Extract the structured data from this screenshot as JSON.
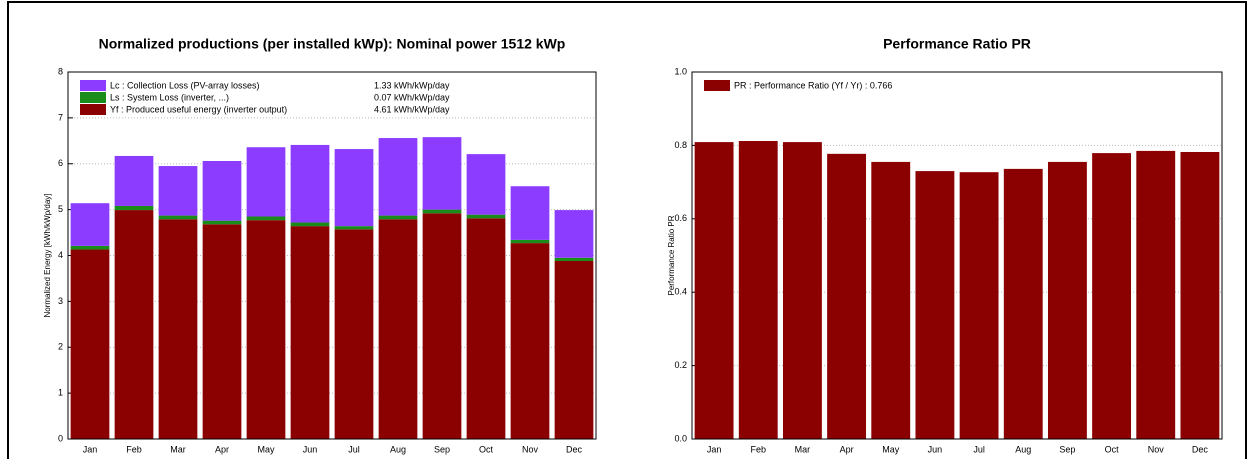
{
  "chart_data": [
    {
      "type": "bar",
      "stacked": true,
      "title": "Normalized productions (per installed kWp):  Nominal power 1512 kWp",
      "y_label": "Normalized Energy [kWh/kWp/day]",
      "categories": [
        "Jan",
        "Feb",
        "Mar",
        "Apr",
        "May",
        "Jun",
        "Jul",
        "Aug",
        "Sep",
        "Oct",
        "Nov",
        "Dec"
      ],
      "series": [
        {
          "name": "Yf : Produced useful energy  (inverter output)",
          "summary": "4.61 kWh/kWp/day",
          "color": "#8b0000",
          "values": [
            4.13,
            4.99,
            4.79,
            4.68,
            4.77,
            4.64,
            4.57,
            4.79,
            4.92,
            4.81,
            4.27,
            3.88
          ]
        },
        {
          "name": "Ls : System Loss  (inverter, ...)",
          "summary": "0.07 kWh/kWp/day",
          "color": "#1a8c1a",
          "values": [
            0.08,
            0.09,
            0.08,
            0.08,
            0.08,
            0.08,
            0.07,
            0.08,
            0.08,
            0.08,
            0.07,
            0.07
          ]
        },
        {
          "name": "Lc : Collection Loss (PV-array losses)",
          "summary": "1.33 kWh/kWp/day",
          "color": "#8b3cff",
          "values": [
            0.93,
            1.09,
            1.08,
            1.3,
            1.51,
            1.69,
            1.68,
            1.69,
            1.58,
            1.32,
            1.17,
            1.04
          ]
        }
      ],
      "ylim": [
        0,
        8
      ],
      "yticks": [
        0,
        1,
        2,
        3,
        4,
        5,
        6,
        7,
        8
      ],
      "grid": true
    },
    {
      "type": "bar",
      "title": "Performance Ratio PR",
      "y_label": "Performance Ratio PR",
      "categories": [
        "Jan",
        "Feb",
        "Mar",
        "Apr",
        "May",
        "Jun",
        "Jul",
        "Aug",
        "Sep",
        "Oct",
        "Nov",
        "Dec"
      ],
      "series": [
        {
          "name": "PR : Performance Ratio (Yf / Yr) :  0.766",
          "color": "#8b0000",
          "values": [
            0.809,
            0.812,
            0.809,
            0.777,
            0.755,
            0.73,
            0.727,
            0.736,
            0.755,
            0.779,
            0.785,
            0.782
          ]
        }
      ],
      "ylim": [
        0,
        1
      ],
      "yticks": [
        {
          "value": 0,
          "label": "0.0"
        },
        0.2,
        0.4,
        0.6,
        0.8,
        {
          "value": 1,
          "label": "1.0"
        }
      ],
      "grid": true
    }
  ]
}
